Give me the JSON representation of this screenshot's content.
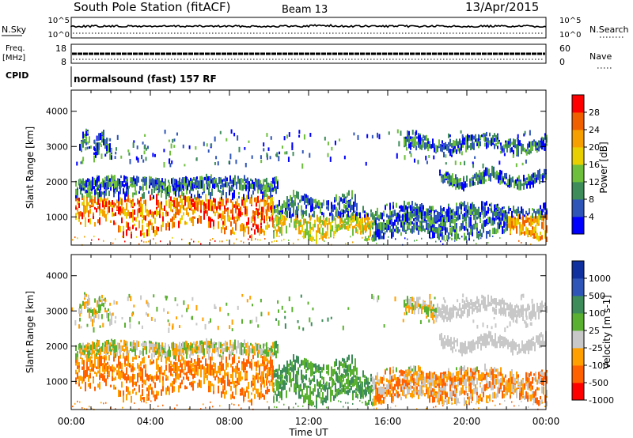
{
  "header": {
    "station": "South Pole Station (fitACF)",
    "beam": "Beam 13",
    "date": "13/Apr/2015",
    "program": "normalsound (fast) 157 RF"
  },
  "noise_panel": {
    "left_label": "N.Sky",
    "right_label": "N.Search",
    "ticks_left": [
      "10^5",
      "10^0"
    ],
    "ticks_right": [
      "10^5",
      "10^0"
    ]
  },
  "freq_panel": {
    "left_label_line1": "Freq.",
    "left_label_line2": "[MHz]",
    "cpid_label": "CPID",
    "right_label": "Nave",
    "ticks_left": [
      "18",
      "8"
    ],
    "ticks_right": [
      "60",
      "0"
    ]
  },
  "colors": {
    "power": [
      "#0000ff",
      "#2f55b8",
      "#3d8c5a",
      "#6dbf3c",
      "#e8d000",
      "#f5a000",
      "#f06000",
      "#ff0000"
    ],
    "velocity": [
      "#ff0000",
      "#ff6000",
      "#ffa000",
      "#c8c8c8",
      "#5ab030",
      "#3d8c5a",
      "#2f55b8",
      "#1030a0"
    ]
  },
  "chart_data": [
    {
      "type": "heatmap",
      "name": "power",
      "ylabel": "Slant Range [km]",
      "ylim": [
        200,
        4600
      ],
      "yticks": [
        1000,
        2000,
        3000,
        4000
      ],
      "colorbar": {
        "label": "Power [dB]",
        "ticks": [
          "28",
          "24",
          "20",
          "16",
          "12",
          "8",
          "4"
        ],
        "range": [
          0,
          32
        ]
      }
    },
    {
      "type": "heatmap",
      "name": "velocity",
      "ylabel": "Slant Range [km]",
      "xlabel": "Time UT",
      "ylim": [
        200,
        4600
      ],
      "yticks": [
        1000,
        2000,
        3000,
        4000
      ],
      "xticks": [
        "00:00",
        "04:00",
        "08:00",
        "12:00",
        "16:00",
        "20:00",
        "00:00"
      ],
      "colorbar": {
        "label": "Velocity [m s-1]",
        "ticks": [
          "1000",
          "500",
          "100",
          "25",
          "-25",
          "-100",
          "-500",
          "-1000"
        ]
      }
    }
  ]
}
